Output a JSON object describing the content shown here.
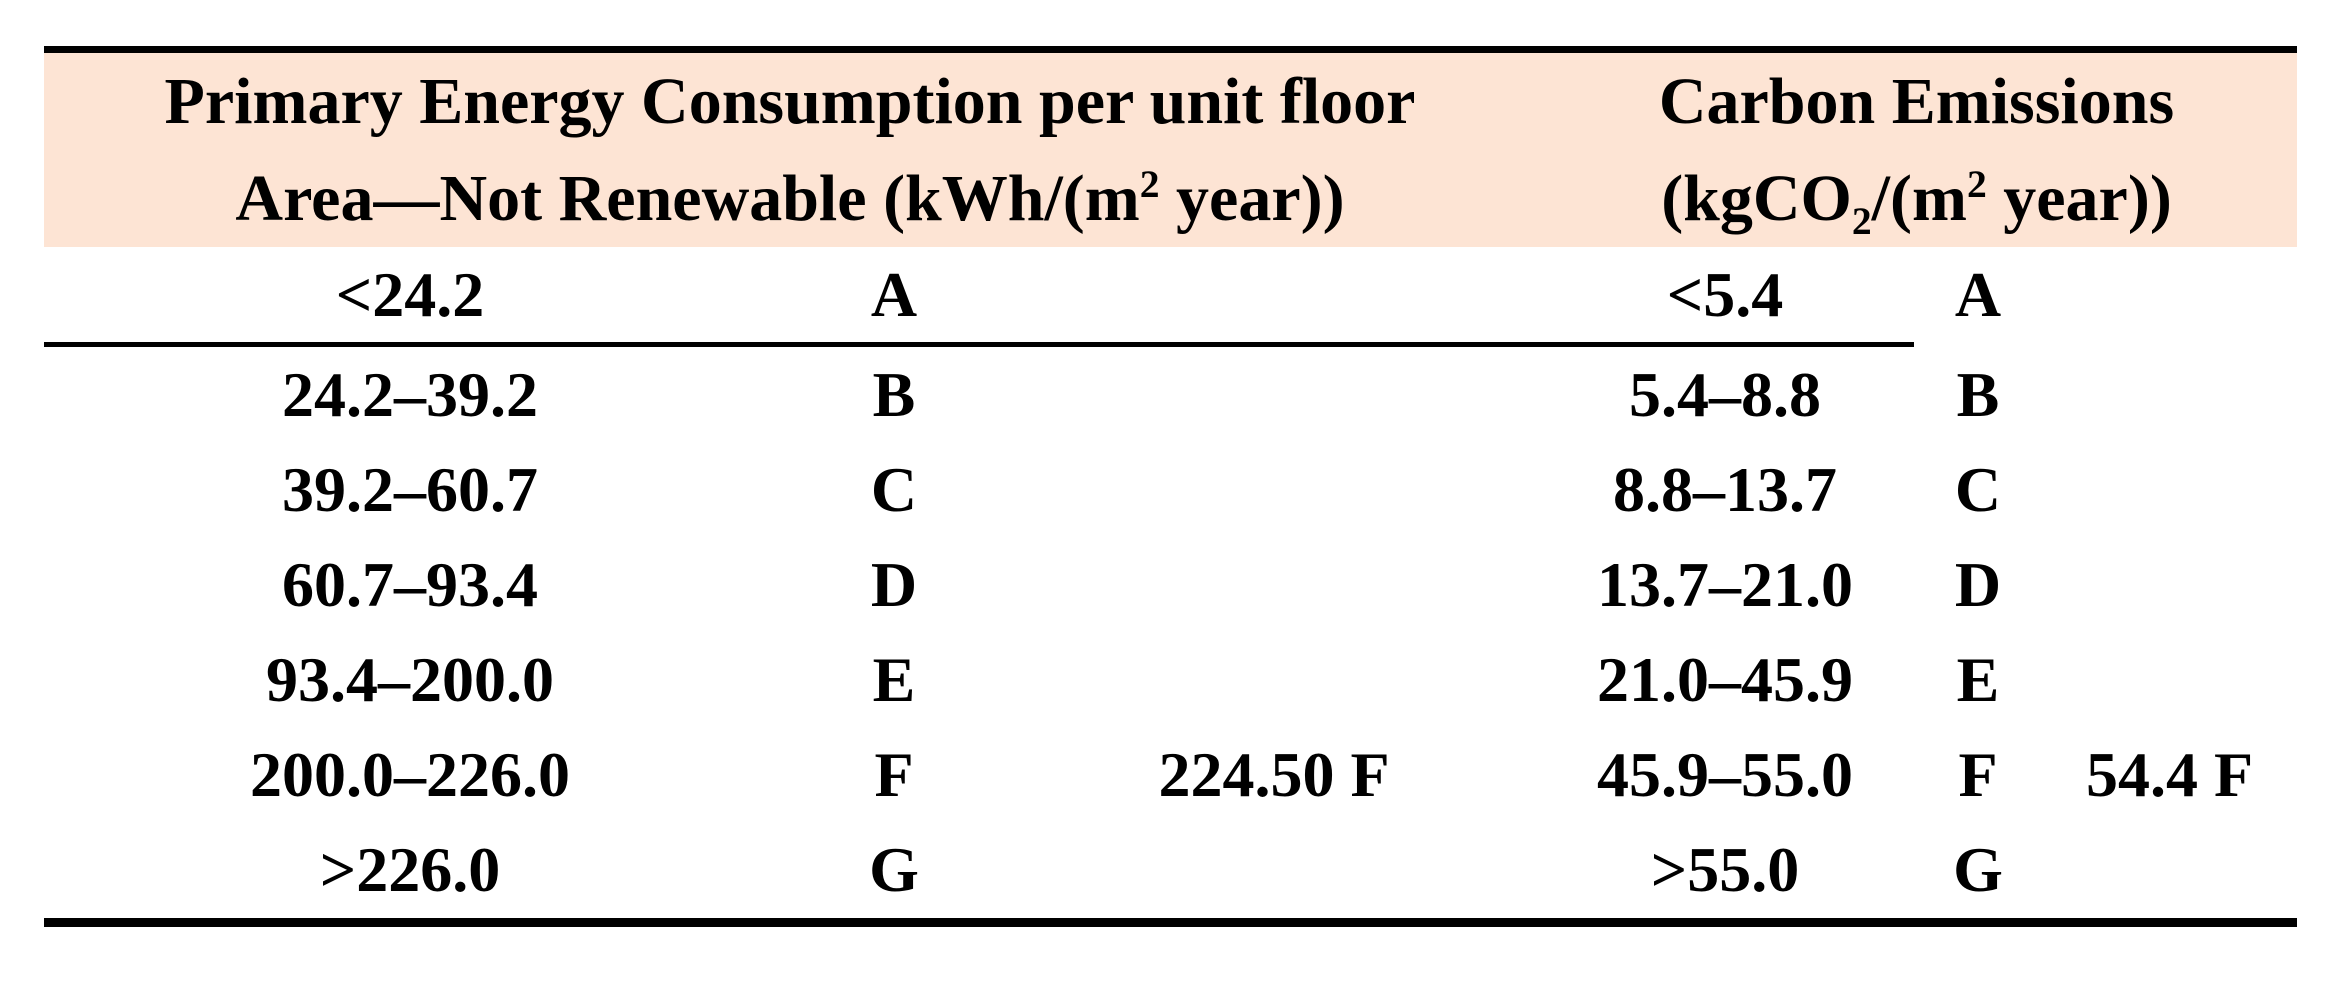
{
  "table": {
    "colors": {
      "header_bg": "#fde4d4",
      "rule": "#000000",
      "text": "#000000"
    },
    "header": {
      "energy": {
        "line1": "Primary Energy Consumption per unit floor",
        "line2_pre": "Area—Not Renewable (kWh/(m",
        "line2_sup": "2",
        "line2_post": " year))"
      },
      "carbon": {
        "line1": "Carbon Emissions",
        "line2_pre": "(kgCO",
        "line2_sub": "2",
        "line2_mid": "/(m",
        "line2_sup": "2",
        "line2_post": " year))"
      }
    },
    "rows": [
      {
        "energy_range": "<24.2",
        "energy_grade": "A",
        "energy_value": "",
        "carbon_range": "<5.4",
        "carbon_grade": "A",
        "carbon_value": ""
      },
      {
        "energy_range": "24.2–39.2",
        "energy_grade": "B",
        "energy_value": "",
        "carbon_range": "5.4–8.8",
        "carbon_grade": "B",
        "carbon_value": ""
      },
      {
        "energy_range": "39.2–60.7",
        "energy_grade": "C",
        "energy_value": "",
        "carbon_range": "8.8–13.7",
        "carbon_grade": "C",
        "carbon_value": ""
      },
      {
        "energy_range": "60.7–93.4",
        "energy_grade": "D",
        "energy_value": "",
        "carbon_range": "13.7–21.0",
        "carbon_grade": "D",
        "carbon_value": ""
      },
      {
        "energy_range": "93.4–200.0",
        "energy_grade": "E",
        "energy_value": "",
        "carbon_range": "21.0–45.9",
        "carbon_grade": "E",
        "carbon_value": ""
      },
      {
        "energy_range": "200.0–226.0",
        "energy_grade": "F",
        "energy_value": "224.50 F",
        "carbon_range": "45.9–55.0",
        "carbon_grade": "F",
        "carbon_value": "54.4 F"
      },
      {
        "energy_range": ">226.0",
        "energy_grade": "G",
        "energy_value": "",
        "carbon_range": ">55.0",
        "carbon_grade": "G",
        "carbon_value": ""
      }
    ]
  }
}
